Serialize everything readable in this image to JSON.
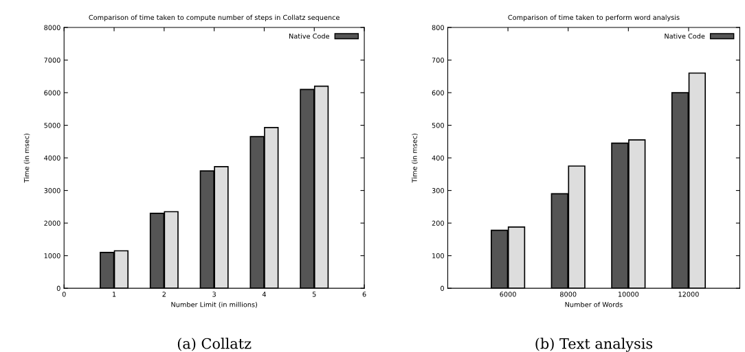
{
  "chart_data": [
    {
      "type": "bar",
      "title": "Comparison of time taken to compute number of steps in Collatz sequence",
      "xlabel": "Number Limit (in millions)",
      "ylabel": "Time (in msec)",
      "x": [
        1,
        2,
        3,
        4,
        5
      ],
      "series": [
        {
          "name": "Native Code",
          "color": "#555555",
          "values": [
            1100,
            2300,
            3600,
            4650,
            6100
          ]
        },
        {
          "color": "#dddddd",
          "values": [
            1150,
            2350,
            3730,
            4930,
            6200
          ]
        }
      ],
      "xlim": [
        0,
        6
      ],
      "xticks": [
        0,
        1,
        2,
        3,
        4,
        5,
        6
      ],
      "ylim": [
        0,
        8000
      ],
      "yticks": [
        0,
        1000,
        2000,
        3000,
        4000,
        5000,
        6000,
        7000,
        8000
      ],
      "legend": "top right",
      "grid": false,
      "annotations": [
        "(a) Collatz"
      ]
    },
    {
      "type": "bar",
      "title": "Comparison of time taken to perform word analysis",
      "xlabel": "Number of Words",
      "ylabel": "Time (in msec)",
      "x": [
        6000,
        8000,
        10000,
        12000
      ],
      "series": [
        {
          "name": "Native Code",
          "color": "#555555",
          "values": [
            178,
            290,
            445,
            600
          ]
        },
        {
          "color": "#dddddd",
          "values": [
            188,
            375,
            455,
            660
          ]
        }
      ],
      "xlim": [
        4000,
        13700
      ],
      "xticks": [
        6000,
        8000,
        10000,
        12000
      ],
      "ylim": [
        0,
        800
      ],
      "yticks": [
        0,
        100,
        200,
        300,
        400,
        500,
        600,
        700,
        800
      ],
      "legend": "top right",
      "grid": false,
      "annotations": [
        "(b) Text analysis"
      ]
    }
  ]
}
